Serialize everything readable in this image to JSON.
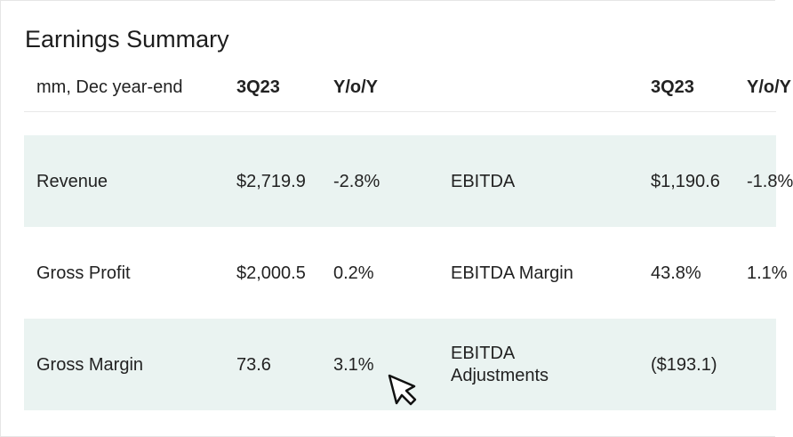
{
  "header": {
    "title": "Earnings Summary"
  },
  "table": {
    "header_left": [
      "mm, Dec year-end",
      "3Q23",
      "Y/o/Y"
    ],
    "header_right": [
      "3Q23",
      "Y/o/Y"
    ],
    "rows": [
      [
        "Revenue",
        "$2,719.9",
        "-2.8%",
        "EBITDA",
        "$1,190.6",
        "-1.8%"
      ],
      [
        "Gross Profit",
        "$2,000.5",
        "0.2%",
        "EBITDA Margin",
        "43.8%",
        "1.1%"
      ],
      [
        "Gross Margin",
        "73.6",
        "3.1%",
        "EBITDA Adjustments",
        "($193.1)"
      ]
    ]
  }
}
